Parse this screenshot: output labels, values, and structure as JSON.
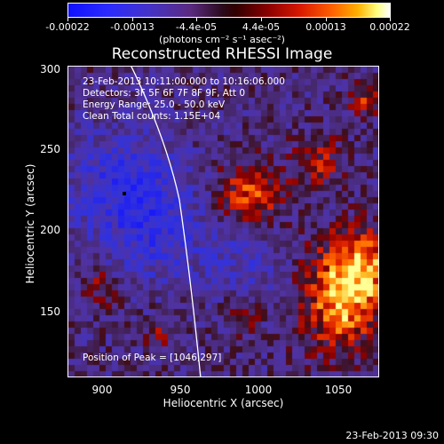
{
  "colorbar": {
    "tick_labels": [
      "-0.00022",
      "-0.00013",
      "-4.4e-05",
      "4.4e-05",
      "0.00013",
      "0.00022"
    ],
    "units": "(photons cm⁻² s⁻¹ asec⁻²)"
  },
  "title": "Reconstructed RHESSI Image",
  "info": {
    "time_range": "23-Feb-2013 10:11:00.000 to 10:16:06.000",
    "detectors": "Detectors: 3F 5F 6F 7F 8F 9F, Att 0",
    "energy": "Energy Range: 25.0 - 50.0 keV",
    "clean": "Clean    Total counts: 1.15E+04",
    "peak": "Position of Peak = [1046,297]"
  },
  "axes": {
    "x_label": "Heliocentric X (arcsec)",
    "y_label": "Heliocentric Y (arcsec)",
    "x_ticks": [
      "900",
      "950",
      "1000",
      "1050"
    ],
    "y_ticks": [
      "300",
      "250",
      "200",
      "150"
    ]
  },
  "timestamp": "23-Feb-2013 09:30",
  "colors": {
    "limb": "#ffffff",
    "background": "#000000",
    "text": "#ffffff"
  }
}
